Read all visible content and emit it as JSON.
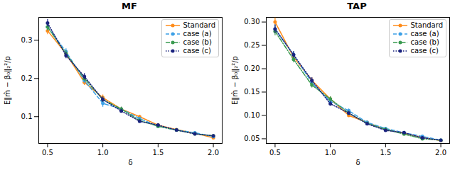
{
  "chart_data": [
    {
      "type": "line",
      "title": "MF",
      "x_label": "δ",
      "y_label": "E‖m̂ − β₀‖₂²/p",
      "x": [
        0.5,
        0.667,
        0.833,
        1.0,
        1.167,
        1.333,
        1.5,
        1.667,
        1.833,
        2.0
      ],
      "xlim": [
        0.42,
        2.08
      ],
      "ylim": [
        0.03,
        0.36
      ],
      "xticks": [
        0.5,
        {
          "value": 1,
          "label": "1.0"
        },
        1.5,
        {
          "value": 2,
          "label": "2.0"
        }
      ],
      "yticks": [
        0.1,
        0.2,
        0.3
      ],
      "grid": false,
      "legend": "upper right",
      "series": [
        {
          "name": "Standard",
          "color": "#ff8c1a",
          "line_style": "solid",
          "marker": "circle",
          "values": [
            0.325,
            0.265,
            0.19,
            0.15,
            0.12,
            0.1,
            0.078,
            0.066,
            0.057,
            0.045
          ],
          "errors": [
            0.01,
            0.008,
            0.008,
            0.007,
            0.005,
            0.004,
            0.003,
            0.003,
            0.003,
            0.002
          ]
        },
        {
          "name": "case (a)",
          "color": "#3ca0e6",
          "line_style": "dashed",
          "marker": "circle",
          "values": [
            0.335,
            0.27,
            0.195,
            0.135,
            0.12,
            0.095,
            0.075,
            0.065,
            0.058,
            0.048
          ],
          "errors": [
            0.01,
            0.008,
            0.008,
            0.01,
            0.005,
            0.004,
            0.003,
            0.003,
            0.003,
            0.002
          ]
        },
        {
          "name": "case (b)",
          "color": "#3a9a50",
          "line_style": "dashdot",
          "marker": "circle",
          "values": [
            0.335,
            0.265,
            0.2,
            0.145,
            0.12,
            0.09,
            0.075,
            0.065,
            0.055,
            0.05
          ],
          "errors": [
            0.01,
            0.008,
            0.008,
            0.007,
            0.005,
            0.004,
            0.003,
            0.003,
            0.003,
            0.002
          ]
        },
        {
          "name": "case (c)",
          "color": "#1a237e",
          "line_style": "dotted",
          "marker": "circle",
          "values": [
            0.345,
            0.26,
            0.205,
            0.145,
            0.115,
            0.088,
            0.078,
            0.065,
            0.055,
            0.05
          ],
          "errors": [
            0.01,
            0.008,
            0.008,
            0.007,
            0.005,
            0.004,
            0.003,
            0.003,
            0.003,
            0.002
          ]
        }
      ]
    },
    {
      "type": "line",
      "title": "TAP",
      "x_label": "δ",
      "y_label": "E‖m̂ − β₀‖₂²/p",
      "x": [
        0.5,
        0.667,
        0.833,
        1.0,
        1.167,
        1.333,
        1.5,
        1.667,
        1.833,
        2.0
      ],
      "xlim": [
        0.42,
        2.08
      ],
      "ylim": [
        0.04,
        0.31
      ],
      "xticks": [
        0.5,
        {
          "value": 1,
          "label": "1.0"
        },
        1.5,
        {
          "value": 2,
          "label": "2.0"
        }
      ],
      "yticks": [
        0.05,
        {
          "value": 0.1,
          "label": "0.10"
        },
        0.15,
        {
          "value": 0.2,
          "label": "0.20"
        },
        0.25,
        {
          "value": 0.3,
          "label": "0.30"
        }
      ],
      "grid": false,
      "legend": "upper right",
      "series": [
        {
          "name": "Standard",
          "color": "#ff8c1a",
          "line_style": "solid",
          "marker": "circle",
          "values": [
            0.3,
            0.225,
            0.175,
            0.135,
            0.1,
            0.085,
            0.07,
            0.062,
            0.053,
            0.046
          ],
          "errors": [
            0.009,
            0.007,
            0.006,
            0.005,
            0.004,
            0.003,
            0.003,
            0.002,
            0.002,
            0.002
          ]
        },
        {
          "name": "case (a)",
          "color": "#3ca0e6",
          "line_style": "dashed",
          "marker": "circle",
          "values": [
            0.285,
            0.23,
            0.17,
            0.13,
            0.11,
            0.085,
            0.072,
            0.063,
            0.055,
            0.047
          ],
          "errors": [
            0.009,
            0.007,
            0.006,
            0.005,
            0.004,
            0.003,
            0.003,
            0.002,
            0.002,
            0.002
          ]
        },
        {
          "name": "case (b)",
          "color": "#3a9a50",
          "line_style": "dashdot",
          "marker": "circle",
          "values": [
            0.28,
            0.22,
            0.165,
            0.135,
            0.105,
            0.083,
            0.07,
            0.06,
            0.05,
            0.047
          ],
          "errors": [
            0.009,
            0.007,
            0.006,
            0.005,
            0.004,
            0.003,
            0.003,
            0.002,
            0.002,
            0.002
          ]
        },
        {
          "name": "case (c)",
          "color": "#1a237e",
          "line_style": "dotted",
          "marker": "circle",
          "values": [
            0.285,
            0.23,
            0.175,
            0.125,
            0.105,
            0.082,
            0.068,
            0.063,
            0.052,
            0.047
          ],
          "errors": [
            0.009,
            0.007,
            0.006,
            0.005,
            0.004,
            0.003,
            0.003,
            0.002,
            0.002,
            0.002
          ]
        }
      ]
    }
  ]
}
